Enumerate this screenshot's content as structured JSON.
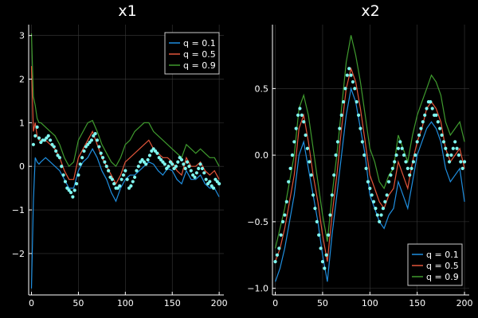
{
  "colors": {
    "background": "#000000",
    "axis": "#ffffff",
    "grid": "#3a3a3a",
    "q01": "#1f8fe0",
    "q05": "#e2553a",
    "q09": "#3f9b2e",
    "observations": "#7ff7ef"
  },
  "chart_data": [
    {
      "type": "line",
      "title": "x1",
      "xlim": [
        -3,
        205
      ],
      "ylim": [
        -2.95,
        3.25
      ],
      "xticks": [
        0,
        50,
        100,
        150,
        200
      ],
      "xtick_labels": [
        "0",
        "50",
        "100",
        "150",
        "200"
      ],
      "yticks": [
        -2,
        -1,
        0,
        1,
        2,
        3
      ],
      "ytick_labels": [
        "−2",
        "−1",
        "0",
        "1",
        "2",
        "3"
      ],
      "grid": true,
      "legend_position": "top-right",
      "series": [
        {
          "name": "q = 0.1",
          "x": [
            0,
            2,
            4,
            6,
            8,
            10,
            15,
            20,
            25,
            30,
            35,
            40,
            45,
            50,
            55,
            60,
            65,
            70,
            75,
            80,
            85,
            90,
            95,
            100,
            105,
            110,
            115,
            120,
            125,
            130,
            135,
            140,
            145,
            150,
            155,
            160,
            165,
            170,
            175,
            180,
            185,
            190,
            195,
            200
          ],
          "y": [
            -2.8,
            -0.8,
            0.2,
            0.1,
            0.05,
            0.1,
            0.2,
            0.1,
            0.0,
            -0.1,
            -0.3,
            -0.5,
            -0.5,
            -0.1,
            0.1,
            0.2,
            0.4,
            0.2,
            -0.1,
            -0.3,
            -0.6,
            -0.8,
            -0.5,
            -0.3,
            -0.2,
            -0.2,
            -0.1,
            0.0,
            0.1,
            0.05,
            -0.1,
            -0.2,
            -0.05,
            -0.1,
            -0.3,
            -0.4,
            -0.1,
            -0.3,
            -0.3,
            -0.2,
            -0.4,
            -0.5,
            -0.5,
            -0.7
          ]
        },
        {
          "name": "q = 0.5",
          "x": [
            0,
            2,
            4,
            6,
            8,
            10,
            15,
            20,
            25,
            30,
            35,
            40,
            45,
            50,
            55,
            60,
            65,
            70,
            75,
            80,
            85,
            90,
            95,
            100,
            105,
            110,
            115,
            120,
            125,
            130,
            135,
            140,
            145,
            150,
            155,
            160,
            165,
            170,
            175,
            180,
            185,
            190,
            195,
            200
          ],
          "y": [
            2.3,
            0.8,
            1.0,
            0.7,
            0.6,
            0.6,
            0.6,
            0.5,
            0.4,
            0.2,
            -0.1,
            -0.3,
            -0.3,
            0.2,
            0.4,
            0.6,
            0.8,
            0.5,
            0.2,
            0.0,
            -0.2,
            -0.4,
            -0.2,
            0.1,
            0.2,
            0.3,
            0.4,
            0.5,
            0.6,
            0.4,
            0.3,
            0.2,
            0.2,
            0.1,
            -0.1,
            -0.2,
            0.2,
            0.0,
            0.0,
            0.1,
            -0.1,
            -0.2,
            -0.1,
            -0.3
          ]
        },
        {
          "name": "q = 0.9",
          "x": [
            0,
            2,
            4,
            6,
            8,
            10,
            15,
            20,
            25,
            30,
            35,
            40,
            45,
            50,
            55,
            60,
            65,
            70,
            75,
            80,
            85,
            90,
            95,
            100,
            105,
            110,
            115,
            120,
            125,
            130,
            135,
            140,
            145,
            150,
            155,
            160,
            165,
            170,
            175,
            180,
            185,
            190,
            195,
            200
          ],
          "y": [
            3.05,
            1.6,
            1.4,
            1.1,
            1.0,
            1.0,
            0.9,
            0.8,
            0.7,
            0.5,
            0.2,
            0.0,
            0.1,
            0.6,
            0.8,
            1.0,
            1.05,
            0.8,
            0.5,
            0.3,
            0.1,
            0.0,
            0.2,
            0.5,
            0.6,
            0.8,
            0.9,
            1.0,
            1.0,
            0.8,
            0.7,
            0.6,
            0.5,
            0.4,
            0.3,
            0.2,
            0.5,
            0.4,
            0.3,
            0.4,
            0.3,
            0.2,
            0.2,
            0.0
          ]
        },
        {
          "name": "",
          "kind": "scatter",
          "x": [
            2,
            4,
            6,
            8,
            10,
            12,
            14,
            16,
            18,
            20,
            22,
            24,
            26,
            28,
            30,
            32,
            34,
            36,
            38,
            40,
            42,
            44,
            46,
            48,
            50,
            52,
            54,
            56,
            58,
            60,
            62,
            64,
            66,
            68,
            70,
            72,
            74,
            76,
            78,
            80,
            82,
            84,
            86,
            88,
            90,
            92,
            94,
            96,
            98,
            100,
            102,
            104,
            106,
            108,
            110,
            112,
            114,
            116,
            118,
            120,
            122,
            124,
            126,
            128,
            130,
            132,
            134,
            136,
            138,
            140,
            142,
            144,
            146,
            148,
            150,
            152,
            154,
            156,
            158,
            160,
            162,
            164,
            166,
            168,
            170,
            172,
            174,
            176,
            178,
            180,
            182,
            184,
            186,
            188,
            190,
            192,
            194,
            196,
            198,
            200
          ],
          "y": [
            0.5,
            0.7,
            0.9,
            0.65,
            0.55,
            0.6,
            0.6,
            0.65,
            0.7,
            0.6,
            0.5,
            0.45,
            0.35,
            0.25,
            0.2,
            0.0,
            -0.2,
            -0.35,
            -0.5,
            -0.55,
            -0.6,
            -0.7,
            -0.55,
            -0.4,
            -0.2,
            0.05,
            0.2,
            0.35,
            0.45,
            0.5,
            0.55,
            0.6,
            0.7,
            0.75,
            0.6,
            0.45,
            0.3,
            0.2,
            0.1,
            0.0,
            -0.1,
            -0.25,
            -0.3,
            -0.4,
            -0.5,
            -0.5,
            -0.45,
            -0.3,
            -0.2,
            -0.1,
            -0.3,
            -0.5,
            -0.45,
            -0.35,
            -0.25,
            -0.1,
            0.0,
            0.1,
            0.15,
            0.1,
            0.05,
            0.15,
            0.25,
            0.35,
            0.4,
            0.35,
            0.3,
            0.2,
            0.15,
            0.1,
            0.05,
            -0.05,
            0.0,
            0.1,
            0.05,
            -0.05,
            0.0,
            0.1,
            0.2,
            0.15,
            0.05,
            -0.05,
            0.1,
            0.0,
            -0.1,
            -0.2,
            -0.25,
            -0.15,
            -0.05,
            0.05,
            -0.05,
            -0.15,
            -0.3,
            -0.4,
            -0.35,
            -0.45,
            -0.5,
            -0.3,
            -0.35,
            -0.4
          ]
        }
      ]
    },
    {
      "type": "line",
      "title": "x2",
      "xlim": [
        -3,
        205
      ],
      "ylim": [
        -1.05,
        0.98
      ],
      "xticks": [
        0,
        50,
        100,
        150,
        200
      ],
      "xtick_labels": [
        "0",
        "50",
        "100",
        "150",
        "200"
      ],
      "yticks": [
        -1.0,
        -0.5,
        0.0,
        0.5
      ],
      "ytick_labels": [
        "−1.0",
        "−0.5",
        "0.0",
        "0.5"
      ],
      "grid": true,
      "legend_position": "bottom-right",
      "series": [
        {
          "name": "q = 0.1",
          "x": [
            0,
            5,
            10,
            15,
            20,
            25,
            30,
            35,
            40,
            45,
            50,
            55,
            60,
            65,
            70,
            75,
            80,
            85,
            90,
            95,
            100,
            105,
            110,
            115,
            120,
            125,
            130,
            135,
            140,
            145,
            150,
            155,
            160,
            165,
            170,
            175,
            180,
            185,
            190,
            195,
            200
          ],
          "y": [
            -0.95,
            -0.85,
            -0.7,
            -0.5,
            -0.3,
            0.0,
            0.1,
            -0.1,
            -0.3,
            -0.5,
            -0.75,
            -0.95,
            -0.6,
            -0.3,
            0.0,
            0.3,
            0.5,
            0.4,
            0.2,
            0.0,
            -0.3,
            -0.4,
            -0.5,
            -0.55,
            -0.45,
            -0.4,
            -0.2,
            -0.3,
            -0.4,
            -0.2,
            0.0,
            0.1,
            0.2,
            0.25,
            0.2,
            0.1,
            -0.1,
            -0.2,
            -0.15,
            -0.1,
            -0.35
          ]
        },
        {
          "name": "q = 0.5",
          "x": [
            0,
            5,
            10,
            15,
            20,
            25,
            30,
            35,
            40,
            45,
            50,
            55,
            60,
            65,
            70,
            75,
            80,
            85,
            90,
            95,
            100,
            105,
            110,
            115,
            120,
            125,
            130,
            135,
            140,
            145,
            150,
            155,
            160,
            165,
            170,
            175,
            180,
            185,
            190,
            195,
            200
          ],
          "y": [
            -0.8,
            -0.7,
            -0.55,
            -0.35,
            -0.15,
            0.2,
            0.3,
            0.1,
            -0.15,
            -0.35,
            -0.6,
            -0.8,
            -0.45,
            -0.15,
            0.2,
            0.5,
            0.65,
            0.55,
            0.35,
            0.1,
            -0.15,
            -0.25,
            -0.35,
            -0.4,
            -0.3,
            -0.25,
            -0.05,
            -0.15,
            -0.25,
            -0.05,
            0.1,
            0.2,
            0.35,
            0.4,
            0.35,
            0.25,
            0.05,
            -0.05,
            0.0,
            0.05,
            -0.1
          ]
        },
        {
          "name": "q = 0.9",
          "x": [
            0,
            5,
            10,
            15,
            20,
            25,
            30,
            35,
            40,
            45,
            50,
            55,
            60,
            65,
            70,
            75,
            80,
            85,
            90,
            95,
            100,
            105,
            110,
            115,
            120,
            125,
            130,
            135,
            140,
            145,
            150,
            155,
            160,
            165,
            170,
            175,
            180,
            185,
            190,
            195,
            200
          ],
          "y": [
            -0.7,
            -0.55,
            -0.4,
            -0.2,
            0.0,
            0.35,
            0.45,
            0.3,
            0.05,
            -0.2,
            -0.45,
            -0.65,
            -0.3,
            0.0,
            0.35,
            0.7,
            0.9,
            0.75,
            0.55,
            0.3,
            0.05,
            -0.05,
            -0.2,
            -0.25,
            -0.15,
            -0.1,
            0.15,
            0.05,
            -0.05,
            0.15,
            0.3,
            0.4,
            0.5,
            0.6,
            0.55,
            0.45,
            0.25,
            0.15,
            0.2,
            0.25,
            0.1
          ]
        },
        {
          "name": "",
          "kind": "scatter",
          "x": [
            0,
            2,
            4,
            6,
            8,
            10,
            12,
            14,
            16,
            18,
            20,
            22,
            24,
            26,
            28,
            30,
            32,
            34,
            36,
            38,
            40,
            42,
            44,
            46,
            48,
            50,
            52,
            54,
            56,
            58,
            60,
            62,
            64,
            66,
            68,
            70,
            72,
            74,
            76,
            78,
            80,
            82,
            84,
            86,
            88,
            90,
            92,
            94,
            96,
            98,
            100,
            102,
            104,
            106,
            108,
            110,
            112,
            114,
            116,
            118,
            120,
            122,
            124,
            126,
            128,
            130,
            132,
            134,
            136,
            138,
            140,
            142,
            144,
            146,
            148,
            150,
            152,
            154,
            156,
            158,
            160,
            162,
            164,
            166,
            168,
            170,
            172,
            174,
            176,
            178,
            180,
            182,
            184,
            186,
            188,
            190,
            192,
            194,
            196,
            198,
            200
          ],
          "y": [
            -0.8,
            -0.75,
            -0.7,
            -0.6,
            -0.5,
            -0.45,
            -0.35,
            -0.2,
            -0.1,
            0.0,
            0.1,
            0.2,
            0.3,
            0.35,
            0.3,
            0.25,
            0.15,
            0.05,
            -0.05,
            -0.15,
            -0.3,
            -0.4,
            -0.5,
            -0.6,
            -0.7,
            -0.8,
            -0.85,
            -0.75,
            -0.6,
            -0.45,
            -0.3,
            -0.15,
            0.0,
            0.1,
            0.2,
            0.3,
            0.4,
            0.5,
            0.6,
            0.65,
            0.6,
            0.55,
            0.5,
            0.4,
            0.3,
            0.2,
            0.1,
            0.0,
            -0.1,
            -0.2,
            -0.25,
            -0.3,
            -0.35,
            -0.4,
            -0.45,
            -0.5,
            -0.45,
            -0.4,
            -0.35,
            -0.3,
            -0.2,
            -0.15,
            -0.1,
            -0.05,
            0.0,
            0.05,
            0.1,
            0.05,
            0.0,
            -0.05,
            -0.1,
            -0.15,
            -0.1,
            -0.05,
            0.0,
            0.1,
            0.15,
            0.2,
            0.25,
            0.3,
            0.35,
            0.4,
            0.4,
            0.35,
            0.3,
            0.3,
            0.25,
            0.2,
            0.15,
            0.1,
            0.05,
            0.0,
            -0.05,
            0.0,
            0.05,
            0.1,
            0.05,
            0.0,
            -0.05,
            -0.1,
            -0.05
          ]
        }
      ]
    }
  ]
}
